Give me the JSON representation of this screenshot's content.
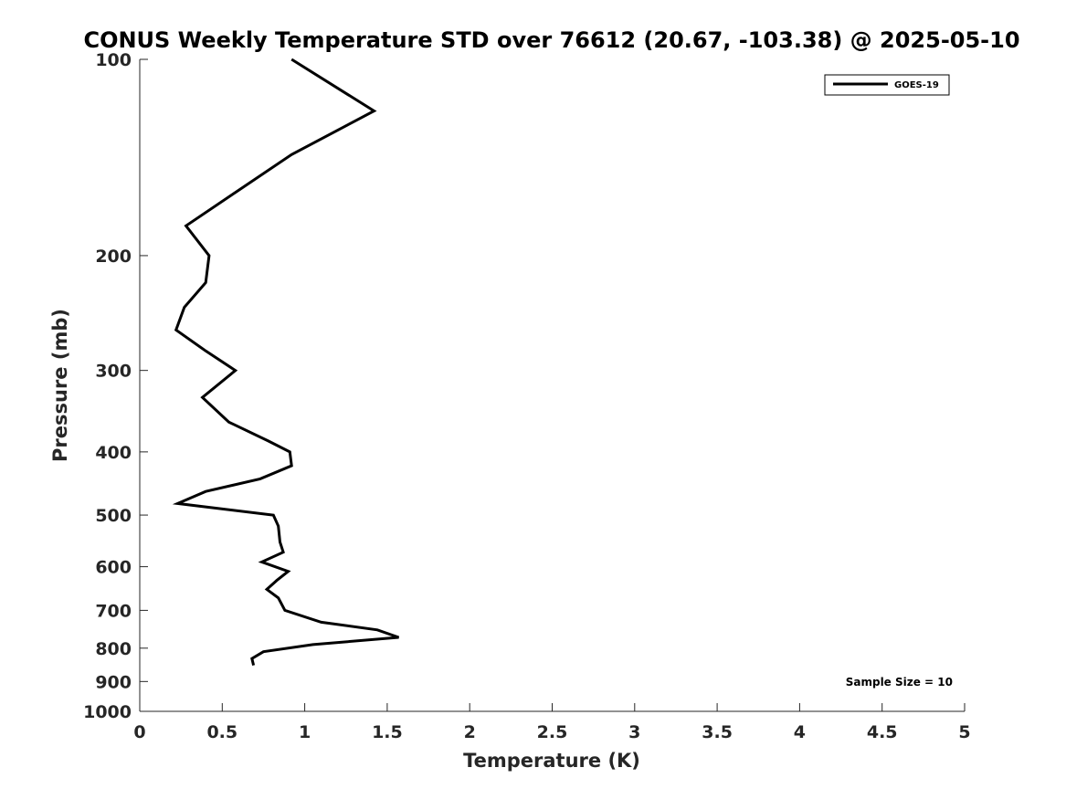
{
  "chart_data": {
    "type": "line",
    "title": "CONUS Weekly Temperature STD over 76612 (20.67, -103.38) @ 2025-05-10",
    "xlabel": "Temperature (K)",
    "ylabel": "Pressure (mb)",
    "xlim": [
      0,
      5
    ],
    "ylim": [
      100,
      1000
    ],
    "y_scale": "log",
    "y_reversed": true,
    "grid": false,
    "legend_position": "top-right",
    "x_ticks": [
      0,
      0.5,
      1,
      1.5,
      2,
      2.5,
      3,
      3.5,
      4,
      4.5,
      5
    ],
    "x_tick_labels": [
      "0",
      "0.5",
      "1",
      "1.5",
      "2",
      "2.5",
      "3",
      "3.5",
      "4",
      "4.5",
      "5"
    ],
    "y_ticks": [
      100,
      200,
      300,
      400,
      500,
      600,
      700,
      800,
      900,
      1000
    ],
    "y_tick_labels": [
      "100",
      "200",
      "300",
      "400",
      "500",
      "600",
      "700",
      "800",
      "900",
      "1000"
    ],
    "series": [
      {
        "name": "GOES-19",
        "color": "#000000",
        "x": [
          0.92,
          1.42,
          0.92,
          0.58,
          0.28,
          0.42,
          0.4,
          0.27,
          0.22,
          0.4,
          0.58,
          0.38,
          0.54,
          0.78,
          0.91,
          0.92,
          0.73,
          0.4,
          0.23,
          0.81,
          0.84,
          0.85,
          0.87,
          0.74,
          0.9,
          0.83,
          0.77,
          0.84,
          0.88,
          1.1,
          1.44,
          1.57,
          1.05,
          0.75,
          0.68,
          0.69
        ],
        "y": [
          100,
          120,
          140,
          160,
          180,
          200,
          220,
          240,
          260,
          280,
          300,
          330,
          360,
          385,
          400,
          420,
          440,
          460,
          480,
          500,
          520,
          550,
          570,
          590,
          610,
          630,
          650,
          670,
          700,
          730,
          750,
          770,
          790,
          810,
          830,
          850
        ]
      }
    ],
    "annotation": "Sample Size = 10"
  }
}
